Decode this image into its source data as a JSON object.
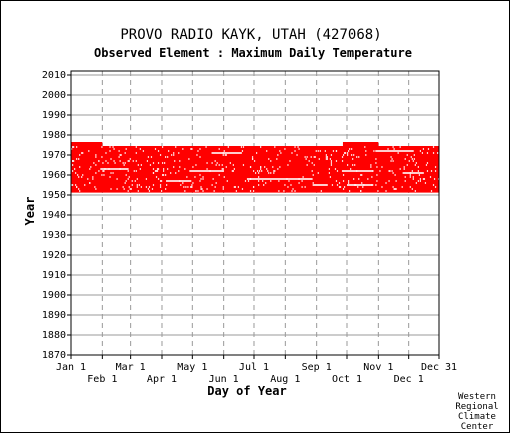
{
  "chart_data": {
    "type": "scatter",
    "title": "PROVO RADIO KAYK, UTAH   (427068)",
    "subtitle": "Observed Element : Maximum Daily Temperature",
    "xlabel": "Day of Year",
    "ylabel": "Year",
    "xlim": [
      1,
      365
    ],
    "ylim": [
      1870,
      2012
    ],
    "x_ticks_top": [
      {
        "label": "Jan 1",
        "day": 1
      },
      {
        "label": "Mar 1",
        "day": 60
      },
      {
        "label": "May 1",
        "day": 121
      },
      {
        "label": "Jul 1",
        "day": 182
      },
      {
        "label": "Sep 1",
        "day": 244
      },
      {
        "label": "Nov 1",
        "day": 305
      },
      {
        "label": "Dec 31",
        "day": 365
      }
    ],
    "x_ticks_bottom": [
      {
        "label": "Feb 1",
        "day": 32
      },
      {
        "label": "Apr 1",
        "day": 91
      },
      {
        "label": "Jun 1",
        "day": 152
      },
      {
        "label": "Aug 1",
        "day": 213
      },
      {
        "label": "Oct 1",
        "day": 274
      },
      {
        "label": "Dec 1",
        "day": 335
      }
    ],
    "y_ticks": [
      1870,
      1880,
      1890,
      1900,
      1910,
      1920,
      1930,
      1940,
      1950,
      1960,
      1970,
      1980,
      1990,
      2000,
      2010
    ],
    "grid": true,
    "marker_color": "#ff0000",
    "coverage": [
      {
        "from_year": 1952,
        "to_year": 1974,
        "from_day": 1,
        "to_day": 365
      },
      {
        "from_year": 1975,
        "to_year": 1976,
        "from_day": 1,
        "to_day": 32
      },
      {
        "from_year": 1975,
        "to_year": 1976,
        "from_day": 270,
        "to_day": 305
      }
    ],
    "gaps": [
      {
        "year": 1963,
        "from_day": 30,
        "to_day": 58
      },
      {
        "year": 1957,
        "from_day": 95,
        "to_day": 120
      },
      {
        "year": 1962,
        "from_day": 118,
        "to_day": 152
      },
      {
        "year": 1958,
        "from_day": 175,
        "to_day": 240
      },
      {
        "year": 1955,
        "from_day": 240,
        "to_day": 255
      },
      {
        "year": 1962,
        "from_day": 270,
        "to_day": 300
      },
      {
        "year": 1955,
        "from_day": 275,
        "to_day": 300
      },
      {
        "year": 1972,
        "from_day": 302,
        "to_day": 340
      },
      {
        "year": 1961,
        "from_day": 330,
        "to_day": 350
      },
      {
        "year": 1971,
        "from_day": 140,
        "to_day": 170
      }
    ]
  },
  "credit": [
    "Western",
    "Regional",
    "Climate",
    "Center"
  ]
}
